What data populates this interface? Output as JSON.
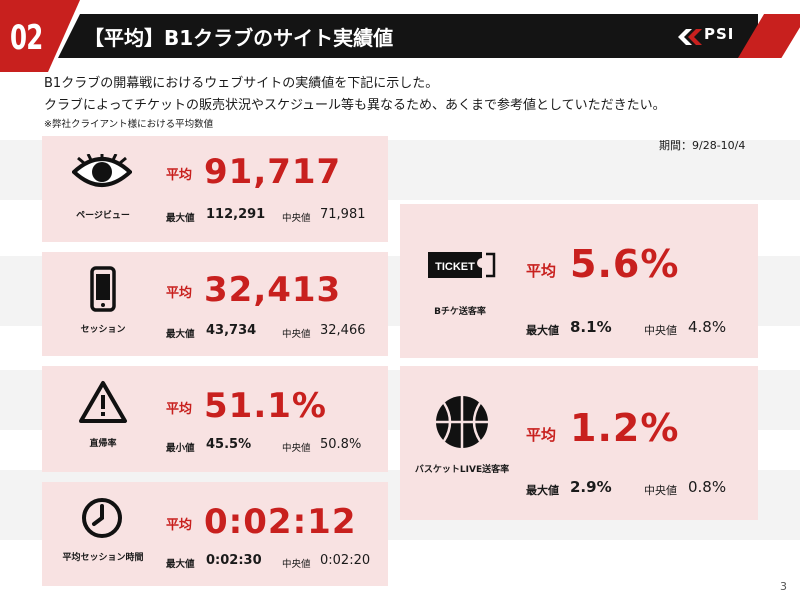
{
  "header": {
    "section_number": "02",
    "title": "【平均】B1クラブのサイト実績値",
    "logo_text": "PSI"
  },
  "intro": {
    "line1": "B1クラブの開幕戦におけるウェブサイトの実績値を下記に示した。",
    "line2": "クラブによってチケットの販売状況やスケジュール等も異なるため、あくまで参考値としていただきたい。",
    "note": "※弊社クライアント様における平均数値"
  },
  "period": "期間：9/28-10/4",
  "metrics": [
    {
      "icon": "eye-icon",
      "label": "ページビュー",
      "avg_label": "平均",
      "avg": "91,717",
      "max_label": "最大値",
      "max": "112,291",
      "med_label": "中央値",
      "med": "71,981"
    },
    {
      "icon": "smartphone-icon",
      "label": "セッション",
      "avg_label": "平均",
      "avg": "32,413",
      "max_label": "最大値",
      "max": "43,734",
      "med_label": "中央値",
      "med": "32,466"
    },
    {
      "icon": "warning-icon",
      "label": "直帰率",
      "avg_label": "平均",
      "avg": "51.1%",
      "max_label": "最小値",
      "max": "45.5%",
      "med_label": "中央値",
      "med": "50.8%"
    },
    {
      "icon": "clock-icon",
      "label": "平均セッション時間",
      "avg_label": "平均",
      "avg": "0:02:12",
      "max_label": "最大値",
      "max": "0:02:30",
      "med_label": "中央値",
      "med": "0:02:20"
    },
    {
      "icon": "ticket-icon",
      "icon_text": "TICKET",
      "label": "Bチケ送客率",
      "avg_label": "平均",
      "avg": "5.6%",
      "max_label": "最大値",
      "max": "8.1%",
      "med_label": "中央値",
      "med": "4.8%"
    },
    {
      "icon": "basketball-icon",
      "label": "バスケットLIVE送客率",
      "avg_label": "平均",
      "avg": "1.2%",
      "max_label": "最大値",
      "max": "2.9%",
      "med_label": "中央値",
      "med": "0.8%"
    }
  ],
  "colors": {
    "accent": "#c8201e",
    "card_bg": "#f8e2e2",
    "header_bg": "#141414"
  },
  "page_number": "3"
}
